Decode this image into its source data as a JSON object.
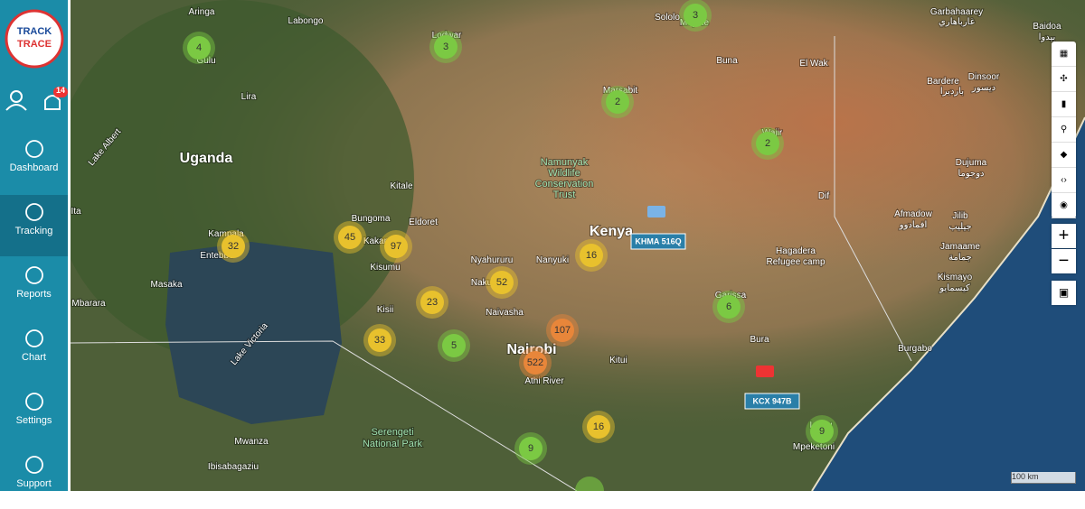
{
  "logo": {
    "line1": "TRACK",
    "line2": "TRACE"
  },
  "notifications": {
    "count": "14"
  },
  "nav": [
    "Dashboard",
    "Tracking",
    "Reports",
    "Chart",
    "Settings",
    "Support"
  ],
  "map_labels": [
    "Aringa",
    "Labongo",
    "Gulu",
    "Lira",
    "Uganda",
    "Lake Albert",
    "Kampala",
    "Entebbe",
    "Masaka",
    "Mbarara",
    "Lake Victoria",
    "Kitale",
    "Bungoma",
    "Eldoret",
    "Kakan",
    "Kisumu",
    "Kisii",
    "Nyahururu",
    "Nakuru",
    "Naivasha",
    "Nanyuki",
    "Kenya",
    "Namunyak",
    "Wildlife",
    "Conservation",
    "Trust",
    "Lodwar",
    "Marsabit",
    "Sololo",
    "Moyale",
    "Buna",
    "El Wak",
    "Garbahaarey",
    "غارباهاري",
    "Baidoa",
    "بيدوا",
    "Bardere",
    "بارديرا",
    "Dinsoor",
    "ديسور",
    "Wajir",
    "Dif",
    "Dujuma",
    "دوجوما",
    "Afmadow",
    "افمادوو",
    "Jilib",
    "جيليب",
    "Jamaame",
    "جمامة",
    "Kismayo",
    "كيسمايو",
    "Hagadera",
    "Refugee camp",
    "Garissa",
    "Bura",
    "Burgabo",
    "Nairobi",
    "Athi River",
    "Kitui",
    "Serengeti",
    "National Park",
    "Mwanza",
    "Ibisabagaziu",
    "Mpeketoni",
    "Lamu",
    "Ita"
  ],
  "clusters": [
    4,
    3,
    3,
    2,
    2,
    32,
    45,
    97,
    16,
    52,
    23,
    6,
    107,
    33,
    5,
    522,
    16,
    9,
    9
  ],
  "vehicles": [
    "KHMA 516Q",
    "KCX 947B"
  ],
  "zoom": {
    "in": "+",
    "out": "−"
  },
  "scale": "100 km"
}
